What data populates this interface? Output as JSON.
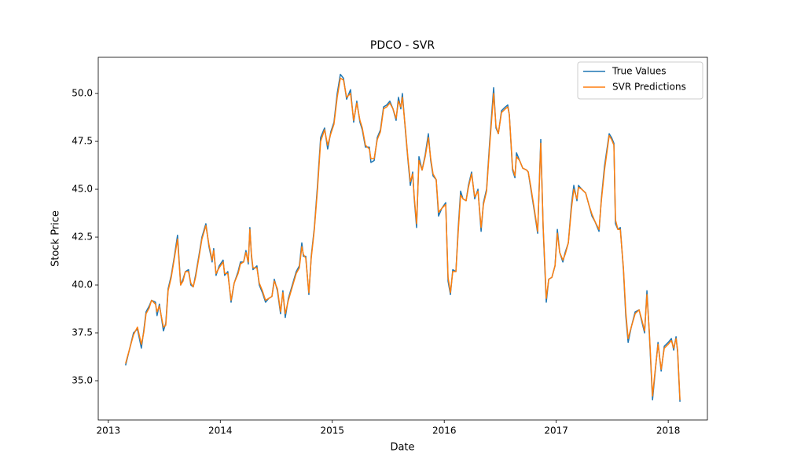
{
  "chart_data": {
    "type": "line",
    "title": "PDCO - SVR",
    "x_label": "Date",
    "y_label": "Stock Price",
    "x": [
      2013.154,
      2013.225,
      2013.26,
      2013.295,
      2013.316,
      2013.337,
      2013.365,
      2013.386,
      2013.421,
      2013.435,
      2013.456,
      2013.492,
      2013.513,
      2013.534,
      2013.562,
      2013.59,
      2013.618,
      2013.646,
      2013.667,
      2013.688,
      2013.716,
      2013.737,
      2013.758,
      2013.779,
      2013.808,
      2013.836,
      2013.871,
      2013.899,
      2013.927,
      2013.941,
      2013.962,
      2013.99,
      2014.025,
      2014.039,
      2014.067,
      2014.096,
      2014.124,
      2014.159,
      2014.18,
      2014.208,
      2014.229,
      2014.25,
      2014.264,
      2014.278,
      2014.292,
      2014.327,
      2014.348,
      2014.376,
      2014.404,
      2014.433,
      2014.461,
      2014.482,
      2014.51,
      2014.538,
      2014.559,
      2014.58,
      2014.608,
      2014.643,
      2014.678,
      2014.706,
      2014.728,
      2014.742,
      2014.763,
      2014.791,
      2014.812,
      2014.84,
      2014.868,
      2014.896,
      2014.931,
      2014.959,
      2014.987,
      2015.015,
      2015.044,
      2015.072,
      2015.1,
      2015.128,
      2015.163,
      2015.191,
      2015.219,
      2015.247,
      2015.268,
      2015.296,
      2015.331,
      2015.345,
      2015.374,
      2015.402,
      2015.43,
      2015.458,
      2015.486,
      2015.514,
      2015.542,
      2015.57,
      2015.591,
      2015.612,
      2015.626,
      2015.654,
      2015.676,
      2015.697,
      2015.718,
      2015.732,
      2015.753,
      2015.774,
      2015.802,
      2015.83,
      2015.858,
      2015.879,
      2015.9,
      2015.928,
      2015.949,
      2015.978,
      2016.013,
      2016.034,
      2016.055,
      2016.076,
      2016.104,
      2016.125,
      2016.146,
      2016.167,
      2016.195,
      2016.216,
      2016.244,
      2016.272,
      2016.301,
      2016.329,
      2016.35,
      2016.378,
      2016.406,
      2016.441,
      2016.462,
      2016.483,
      2016.511,
      2016.546,
      2016.567,
      2016.581,
      2016.61,
      2016.631,
      2016.645,
      2016.673,
      2016.701,
      2016.736,
      2016.75,
      2016.771,
      2016.806,
      2016.834,
      2016.862,
      2016.883,
      2016.911,
      2016.933,
      2016.961,
      2016.989,
      2017.01,
      2017.031,
      2017.059,
      2017.08,
      2017.108,
      2017.136,
      2017.157,
      2017.185,
      2017.199,
      2017.228,
      2017.263,
      2017.291,
      2017.319,
      2017.347,
      2017.382,
      2017.403,
      2017.431,
      2017.473,
      2017.494,
      2017.515,
      2017.529,
      2017.551,
      2017.572,
      2017.6,
      2017.621,
      2017.642,
      2017.67,
      2017.705,
      2017.74,
      2017.768,
      2017.789,
      2017.81,
      2017.831,
      2017.86,
      2017.881,
      2017.909,
      2017.937,
      2017.965,
      2018.0,
      2018.028,
      2018.049,
      2018.07,
      2018.084,
      2018.105
    ],
    "series": [
      {
        "name": "True Values",
        "color": "#1f77b4",
        "values": [
          35.8,
          37.5,
          37.7,
          36.7,
          37.6,
          38.6,
          38.9,
          39.2,
          39.1,
          38.4,
          39.0,
          37.6,
          38.0,
          39.8,
          40.5,
          41.5,
          42.6,
          40.0,
          40.3,
          40.7,
          40.8,
          40.0,
          39.9,
          40.5,
          41.5,
          42.5,
          43.2,
          42.0,
          41.2,
          41.9,
          40.5,
          41.0,
          41.3,
          40.5,
          40.7,
          39.1,
          40.1,
          40.7,
          41.2,
          41.2,
          41.8,
          41.1,
          43.0,
          41.5,
          40.8,
          41.0,
          40.0,
          39.6,
          39.1,
          39.3,
          39.4,
          40.3,
          39.7,
          38.5,
          39.7,
          38.3,
          39.3,
          40.0,
          40.7,
          41.0,
          42.2,
          41.5,
          41.5,
          39.5,
          41.5,
          43.0,
          45.2,
          47.7,
          48.2,
          47.1,
          48.0,
          48.5,
          50.0,
          51.0,
          50.8,
          49.7,
          50.2,
          48.5,
          49.6,
          48.5,
          48.1,
          47.2,
          47.2,
          46.4,
          46.5,
          47.7,
          48.1,
          49.3,
          49.4,
          49.6,
          49.2,
          48.6,
          49.8,
          49.2,
          50.0,
          48.0,
          46.5,
          45.2,
          45.9,
          44.5,
          43.0,
          46.7,
          46.0,
          46.8,
          47.9,
          46.5,
          45.7,
          45.5,
          43.6,
          44.0,
          44.3,
          40.2,
          39.5,
          40.8,
          40.7,
          43.0,
          44.9,
          44.5,
          44.4,
          45.2,
          45.9,
          44.5,
          45.0,
          42.8,
          44.3,
          45.0,
          47.5,
          50.3,
          48.2,
          47.9,
          49.1,
          49.3,
          49.4,
          48.9,
          46.0,
          45.6,
          46.9,
          46.5,
          46.1,
          46.0,
          45.9,
          45.1,
          43.8,
          42.7,
          47.6,
          43.0,
          39.1,
          40.3,
          40.4,
          41.0,
          42.9,
          41.7,
          41.2,
          41.7,
          42.2,
          44.2,
          45.2,
          44.4,
          45.2,
          45.0,
          44.8,
          44.2,
          43.6,
          43.3,
          42.8,
          44.5,
          46.2,
          47.9,
          47.7,
          47.4,
          43.2,
          42.9,
          43.0,
          40.8,
          38.4,
          37.0,
          37.8,
          38.6,
          38.7,
          38.0,
          37.5,
          39.7,
          37.5,
          34.0,
          35.3,
          37.0,
          35.5,
          36.8,
          37.0,
          37.2,
          36.6,
          37.3,
          36.5,
          33.9
        ]
      },
      {
        "name": "SVR Predictions",
        "color": "#ff7f0e",
        "values": [
          35.9,
          37.4,
          37.8,
          36.9,
          37.5,
          38.5,
          38.8,
          39.2,
          39.0,
          38.6,
          38.9,
          37.8,
          37.9,
          39.7,
          40.4,
          41.4,
          42.4,
          40.0,
          40.2,
          40.7,
          40.7,
          40.1,
          39.9,
          40.4,
          41.4,
          42.4,
          43.1,
          42.1,
          41.3,
          41.8,
          40.6,
          40.9,
          41.2,
          40.6,
          40.6,
          39.2,
          40.1,
          40.6,
          41.1,
          41.2,
          41.7,
          41.2,
          42.9,
          41.6,
          40.9,
          40.9,
          40.1,
          39.7,
          39.2,
          39.3,
          39.4,
          40.2,
          39.8,
          38.6,
          39.6,
          38.5,
          39.2,
          39.9,
          40.6,
          40.9,
          42.0,
          41.6,
          41.4,
          39.6,
          41.4,
          42.9,
          45.0,
          47.5,
          48.1,
          47.3,
          47.9,
          48.4,
          49.8,
          50.8,
          50.7,
          49.8,
          50.0,
          48.6,
          49.5,
          48.6,
          48.2,
          47.3,
          47.1,
          46.6,
          46.6,
          47.6,
          48.0,
          49.2,
          49.3,
          49.5,
          49.2,
          48.7,
          49.6,
          49.3,
          49.8,
          48.1,
          46.6,
          45.4,
          45.8,
          44.6,
          43.2,
          46.5,
          46.0,
          46.7,
          47.7,
          46.6,
          45.8,
          45.5,
          43.8,
          44.0,
          44.2,
          40.4,
          39.6,
          40.7,
          40.7,
          42.8,
          44.7,
          44.5,
          44.4,
          45.1,
          45.8,
          44.6,
          44.9,
          43.0,
          44.2,
          44.9,
          47.3,
          50.0,
          48.3,
          47.9,
          49.0,
          49.2,
          49.3,
          48.9,
          46.1,
          45.7,
          46.7,
          46.5,
          46.1,
          46.0,
          45.9,
          45.2,
          43.9,
          42.8,
          47.4,
          43.1,
          39.3,
          40.3,
          40.4,
          41.0,
          42.7,
          41.7,
          41.3,
          41.6,
          42.2,
          44.0,
          45.0,
          44.5,
          45.1,
          45.0,
          44.8,
          44.2,
          43.7,
          43.3,
          42.9,
          44.4,
          46.0,
          47.8,
          47.6,
          47.3,
          43.4,
          42.9,
          42.9,
          40.9,
          38.6,
          37.2,
          37.8,
          38.5,
          38.7,
          38.1,
          37.6,
          39.5,
          37.6,
          34.2,
          35.4,
          36.9,
          35.6,
          36.7,
          36.9,
          37.1,
          36.7,
          37.2,
          36.6,
          34.0
        ]
      }
    ],
    "xlim": [
      2012.91,
      2018.35
    ],
    "xticks": [
      2013,
      2014,
      2015,
      2016,
      2017,
      2018
    ],
    "ylim": [
      32.95,
      51.89
    ],
    "yticks": [
      {
        "value": 35,
        "label": "35.0"
      },
      {
        "value": 37.5,
        "label": "37.5"
      },
      {
        "value": 40,
        "label": "40.0"
      },
      {
        "value": 42.5,
        "label": "42.5"
      },
      {
        "value": 45,
        "label": "45.0"
      },
      {
        "value": 47.5,
        "label": "47.5"
      },
      {
        "value": 50,
        "label": "50.0"
      }
    ],
    "legend": "upper right",
    "grid": false
  }
}
